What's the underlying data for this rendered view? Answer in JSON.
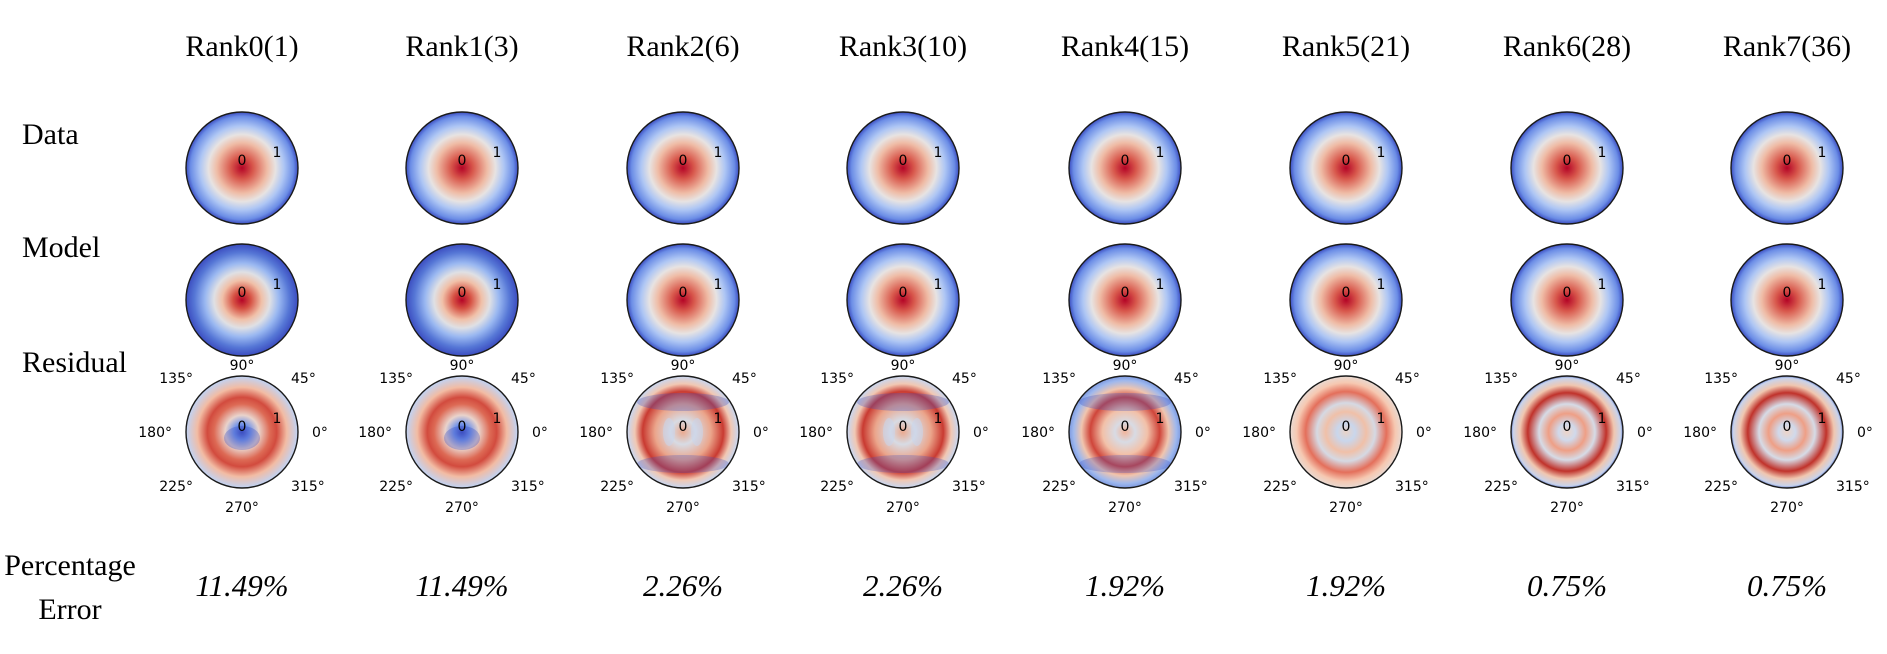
{
  "columns": [
    {
      "title": "Rank0(1)",
      "error": "11.49%",
      "model": "rank0",
      "residual": "r0"
    },
    {
      "title": "Rank1(3)",
      "error": "11.49%",
      "model": "rank0",
      "residual": "r0"
    },
    {
      "title": "Rank2(6)",
      "error": "2.26%",
      "model": "data",
      "residual": "r2"
    },
    {
      "title": "Rank3(10)",
      "error": "2.26%",
      "model": "data",
      "residual": "r2"
    },
    {
      "title": "Rank4(15)",
      "error": "1.92%",
      "model": "data",
      "residual": "r4"
    },
    {
      "title": "Rank5(21)",
      "error": "1.92%",
      "model": "data",
      "residual": "r5"
    },
    {
      "title": "Rank6(28)",
      "error": "0.75%",
      "model": "data",
      "residual": "r6"
    },
    {
      "title": "Rank7(36)",
      "error": "0.75%",
      "model": "data",
      "residual": "r6"
    }
  ],
  "rows": {
    "data": "Data",
    "model": "Model",
    "residual": "Residual",
    "error_line1": "Percentage",
    "error_line2": "Error"
  },
  "radial_ticks": [
    "0",
    "1"
  ],
  "angle_ticks": [
    "0°",
    "45°",
    "90°",
    "135°",
    "180°",
    "225°",
    "270°",
    "315°"
  ],
  "colors": {
    "deep_red": "#b40426",
    "light": "#dddcdc",
    "deep_blue": "#3b4cc0"
  }
}
